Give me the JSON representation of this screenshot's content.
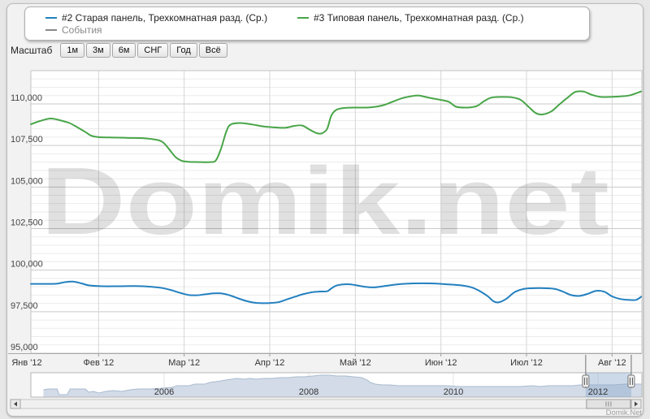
{
  "page": {
    "watermark": "Domik.net",
    "credit": "Domik.Net",
    "accent_colors": {
      "series_old_panel": "#2380bf",
      "series_typical_panel": "#48a548",
      "events": "#888888",
      "navigator_fill": "#d2dbe7",
      "navigator_line": "#aabbd0",
      "selection_tint": "#8eaacc"
    }
  },
  "legend": {
    "series": [
      {
        "label": "#2 Старая панель, Трехкомнатная разд. (Ср.)",
        "color": "#2380bf"
      },
      {
        "label": "#3 Типовая панель, Трехкомнатная разд. (Ср.)",
        "color": "#48a548"
      }
    ],
    "events": {
      "label": "События",
      "color": "#888888"
    }
  },
  "range_selector": {
    "label": "Масштаб",
    "buttons": [
      {
        "label": "1м"
      },
      {
        "label": "3м"
      },
      {
        "label": "6м"
      },
      {
        "label": "СНГ"
      },
      {
        "label": "Год"
      },
      {
        "label": "Всё"
      }
    ]
  },
  "chart_data": {
    "type": "line",
    "title": "",
    "x_axis": {
      "unit": "month_of_2012",
      "tick_labels": [
        "Янв '12",
        "Фев '12",
        "Мар '12",
        "Апр '12",
        "Май '12",
        "Июн '12",
        "Июл '12",
        "Авг '12"
      ]
    },
    "y_axis": {
      "min": 95000,
      "max": 112000,
      "tick_interval": 2500,
      "minor_interval": 500,
      "tick_labels": [
        "95,000",
        "97,500",
        "100,000",
        "102,500",
        "105,000",
        "107,500",
        "110,000"
      ]
    },
    "grid": true,
    "legend_position": "top",
    "series": [
      {
        "name": "#2 Старая панель, Трехкомнатная разд. (Ср.)",
        "color": "#2380bf",
        "points": [
          [
            0.21,
            99170
          ],
          [
            0.37,
            99170
          ],
          [
            0.51,
            99180
          ],
          [
            0.61,
            99280
          ],
          [
            0.7,
            99310
          ],
          [
            0.8,
            99200
          ],
          [
            0.89,
            99080
          ],
          [
            1.04,
            99030
          ],
          [
            1.23,
            99030
          ],
          [
            1.42,
            99040
          ],
          [
            1.61,
            99000
          ],
          [
            1.75,
            98920
          ],
          [
            1.86,
            98780
          ],
          [
            1.96,
            98620
          ],
          [
            2.05,
            98510
          ],
          [
            2.15,
            98490
          ],
          [
            2.24,
            98540
          ],
          [
            2.34,
            98600
          ],
          [
            2.43,
            98600
          ],
          [
            2.53,
            98490
          ],
          [
            2.62,
            98320
          ],
          [
            2.72,
            98150
          ],
          [
            2.81,
            98050
          ],
          [
            2.91,
            98010
          ],
          [
            3.0,
            98020
          ],
          [
            3.1,
            98070
          ],
          [
            3.19,
            98220
          ],
          [
            3.29,
            98390
          ],
          [
            3.38,
            98540
          ],
          [
            3.48,
            98660
          ],
          [
            3.57,
            98710
          ],
          [
            3.67,
            98730
          ],
          [
            3.72,
            98900
          ],
          [
            3.79,
            99090
          ],
          [
            3.93,
            99150
          ],
          [
            4.12,
            98990
          ],
          [
            4.22,
            98960
          ],
          [
            4.31,
            99020
          ],
          [
            4.5,
            99150
          ],
          [
            4.69,
            99200
          ],
          [
            4.88,
            99200
          ],
          [
            5.07,
            99150
          ],
          [
            5.26,
            99070
          ],
          [
            5.36,
            98960
          ],
          [
            5.45,
            98750
          ],
          [
            5.55,
            98420
          ],
          [
            5.61,
            98140
          ],
          [
            5.67,
            98060
          ],
          [
            5.76,
            98260
          ],
          [
            5.86,
            98670
          ],
          [
            5.96,
            98860
          ],
          [
            6.05,
            98910
          ],
          [
            6.24,
            98910
          ],
          [
            6.34,
            98860
          ],
          [
            6.43,
            98700
          ],
          [
            6.52,
            98500
          ],
          [
            6.62,
            98450
          ],
          [
            6.72,
            98580
          ],
          [
            6.81,
            98750
          ],
          [
            6.91,
            98700
          ],
          [
            7.0,
            98420
          ],
          [
            7.1,
            98260
          ],
          [
            7.19,
            98210
          ],
          [
            7.28,
            98210
          ],
          [
            7.34,
            98400
          ]
        ]
      },
      {
        "name": "#3 Типовая панель, Трехкомнатная разд. (Ср.)",
        "color": "#48a548",
        "points": [
          [
            0.21,
            108780
          ],
          [
            0.32,
            108980
          ],
          [
            0.44,
            109120
          ],
          [
            0.56,
            109000
          ],
          [
            0.66,
            108850
          ],
          [
            0.75,
            108600
          ],
          [
            0.85,
            108300
          ],
          [
            0.91,
            108100
          ],
          [
            0.99,
            108010
          ],
          [
            1.13,
            107980
          ],
          [
            1.32,
            107960
          ],
          [
            1.51,
            107940
          ],
          [
            1.67,
            107850
          ],
          [
            1.75,
            107700
          ],
          [
            1.82,
            107300
          ],
          [
            1.9,
            106800
          ],
          [
            1.97,
            106580
          ],
          [
            2.05,
            106520
          ],
          [
            2.17,
            106500
          ],
          [
            2.3,
            106500
          ],
          [
            2.37,
            106600
          ],
          [
            2.43,
            107300
          ],
          [
            2.49,
            108300
          ],
          [
            2.54,
            108750
          ],
          [
            2.65,
            108850
          ],
          [
            2.79,
            108770
          ],
          [
            2.93,
            108640
          ],
          [
            3.08,
            108580
          ],
          [
            3.19,
            108570
          ],
          [
            3.29,
            108680
          ],
          [
            3.38,
            108700
          ],
          [
            3.47,
            108440
          ],
          [
            3.55,
            108240
          ],
          [
            3.61,
            108230
          ],
          [
            3.67,
            108500
          ],
          [
            3.72,
            109300
          ],
          [
            3.78,
            109650
          ],
          [
            3.88,
            109760
          ],
          [
            4.03,
            109780
          ],
          [
            4.17,
            109790
          ],
          [
            4.31,
            109900
          ],
          [
            4.42,
            110100
          ],
          [
            4.55,
            110350
          ],
          [
            4.67,
            110480
          ],
          [
            4.75,
            110500
          ],
          [
            4.86,
            110370
          ],
          [
            4.98,
            110260
          ],
          [
            5.09,
            110130
          ],
          [
            5.18,
            109830
          ],
          [
            5.31,
            109780
          ],
          [
            5.42,
            109870
          ],
          [
            5.5,
            110150
          ],
          [
            5.59,
            110380
          ],
          [
            5.72,
            110420
          ],
          [
            5.83,
            110400
          ],
          [
            5.93,
            110250
          ],
          [
            6.02,
            109850
          ],
          [
            6.11,
            109440
          ],
          [
            6.19,
            109370
          ],
          [
            6.29,
            109550
          ],
          [
            6.38,
            109950
          ],
          [
            6.48,
            110380
          ],
          [
            6.57,
            110720
          ],
          [
            6.67,
            110740
          ],
          [
            6.76,
            110550
          ],
          [
            6.86,
            110430
          ],
          [
            6.97,
            110420
          ],
          [
            7.09,
            110450
          ],
          [
            7.21,
            110520
          ],
          [
            7.34,
            110750
          ]
        ]
      }
    ]
  },
  "navigator": {
    "year_labels": [
      {
        "year": 2006,
        "label": "2006"
      },
      {
        "year": 2008,
        "label": "2008"
      },
      {
        "year": 2010,
        "label": "2010"
      },
      {
        "year": 2012,
        "label": "2012"
      }
    ],
    "selection": {
      "from": 2011.83,
      "to": 2012.46,
      "label": "2012"
    },
    "series": {
      "fill": "#d2dbe7",
      "line": "#aabbd0",
      "points": [
        [
          2004.33,
          9
        ],
        [
          2004.4,
          10
        ],
        [
          2004.52,
          10
        ],
        [
          2004.55,
          3
        ],
        [
          2004.66,
          3
        ],
        [
          2004.7,
          10
        ],
        [
          2004.91,
          10
        ],
        [
          2004.96,
          6
        ],
        [
          2005.02,
          7
        ],
        [
          2005.1,
          5
        ],
        [
          2005.19,
          7
        ],
        [
          2005.3,
          8
        ],
        [
          2005.42,
          7
        ],
        [
          2005.53,
          9
        ],
        [
          2005.64,
          10
        ],
        [
          2005.81,
          10
        ],
        [
          2005.98,
          11
        ],
        [
          2006.11,
          12
        ],
        [
          2006.18,
          14
        ],
        [
          2006.34,
          14
        ],
        [
          2006.43,
          16
        ],
        [
          2006.56,
          16
        ],
        [
          2006.63,
          18
        ],
        [
          2006.71,
          19
        ],
        [
          2006.79,
          20
        ],
        [
          2006.85,
          21
        ],
        [
          2006.93,
          22
        ],
        [
          2007.01,
          23
        ],
        [
          2007.1,
          22
        ],
        [
          2007.19,
          23
        ],
        [
          2007.27,
          22
        ],
        [
          2007.38,
          23
        ],
        [
          2007.49,
          23
        ],
        [
          2007.61,
          24
        ],
        [
          2007.72,
          24
        ],
        [
          2007.83,
          25
        ],
        [
          2007.94,
          25
        ],
        [
          2008.06,
          26
        ],
        [
          2008.17,
          27
        ],
        [
          2008.28,
          27
        ],
        [
          2008.39,
          26
        ],
        [
          2008.51,
          26
        ],
        [
          2008.62,
          25
        ],
        [
          2008.73,
          24
        ],
        [
          2008.81,
          21
        ],
        [
          2008.85,
          18
        ],
        [
          2008.92,
          16
        ],
        [
          2009.01,
          15
        ],
        [
          2009.12,
          15
        ],
        [
          2009.24,
          14
        ],
        [
          2009.46,
          14
        ],
        [
          2009.69,
          14
        ],
        [
          2009.91,
          14
        ],
        [
          2010.08,
          13
        ],
        [
          2010.25,
          13
        ],
        [
          2010.47,
          13
        ],
        [
          2010.7,
          13
        ],
        [
          2010.92,
          13
        ],
        [
          2011.09,
          14
        ],
        [
          2011.2,
          13
        ],
        [
          2011.31,
          14
        ],
        [
          2011.48,
          14
        ],
        [
          2011.65,
          14
        ],
        [
          2011.76,
          15
        ],
        [
          2011.88,
          15
        ],
        [
          2012.04,
          15
        ],
        [
          2012.21,
          15
        ],
        [
          2012.38,
          16
        ],
        [
          2012.49,
          16
        ],
        [
          2012.6,
          16
        ]
      ]
    }
  },
  "scrollbar": {
    "left_icon": "triangle-left",
    "right_icon": "triangle-right",
    "grip_icon": "grip-lines"
  }
}
